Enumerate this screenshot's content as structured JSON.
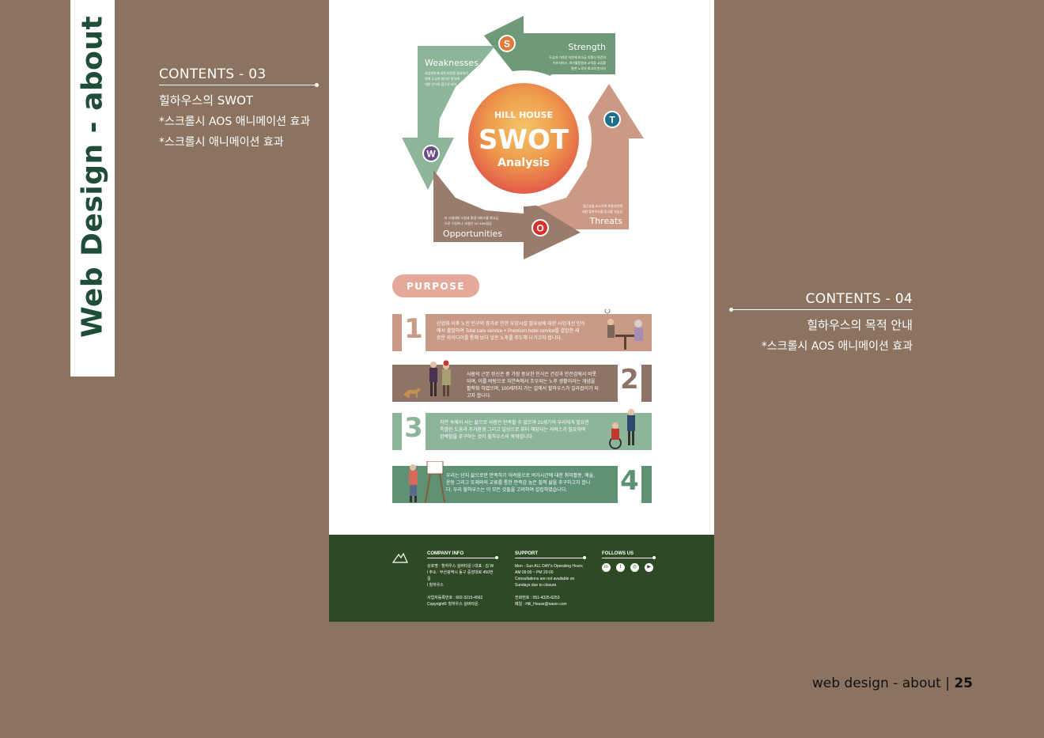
{
  "side_title": "Web Design - about",
  "contents_03": {
    "head": "CONTENTS - 03",
    "lines": [
      "힐하우스의  SWOT",
      "*스크롤시 AOS 애니메이션 효과",
      "*스크롤시 애니메이션 효과"
    ]
  },
  "contents_04": {
    "head": "CONTENTS - 04",
    "lines": [
      "힐하우스의  목적 안내",
      "*스크롤시 AOS 애니메이션 효과"
    ]
  },
  "swot": {
    "brand": "HILL HOUSE",
    "title": "SWOT",
    "subtitle": "Analysis",
    "strength": {
      "label": "Strength",
      "letter": "S",
      "text": [
        "도심과 가까운 자연에 최고급 호텔식 편견과",
        "어프서비스, 여가활동원과  교육을 교류를",
        "통한 노후의 최고의 만사의"
      ]
    },
    "weakness": {
      "label": "Weaknesses",
      "letter": "W",
      "text": [
        "사업분야에 대한 비용을 필요하기",
        "위해 도심과 멀어진 위치에",
        "대한 인식의 접근성 저하"
      ]
    },
    "threats": {
      "label": "Threats",
      "letter": "T",
      "text": [
        "접근성을 요소하여 비용지연해",
        "대한 힐하우스를 광고할 가능성"
      ]
    },
    "opportunities": {
      "label": "Opportunities",
      "letter": "O",
      "text": [
        "타 시설대비 시설과 환경 서비스를 최고급",
        "으로 구성하나, 비용은 10~15%정급"
      ]
    },
    "colors": {
      "s": "#e07a3c",
      "w": "#6a4c86",
      "t": "#1f6e8c",
      "o": "#d6322b",
      "green": "#5f9274",
      "lightgreen": "#8db59a",
      "brown": "#9a7c6c",
      "salmon": "#d29a84"
    }
  },
  "purpose": {
    "badge": "PURPOSE",
    "items": [
      {
        "num": "1",
        "text": [
          "산업화 이후 노인 인구의 증가로 인한 요양시설 필요성에 대한 사업개선 인식",
          "에서 출발하여 Total care service + Premium hotel service를 결합한 새",
          "로운 아이디어를 통해 보다 낳은 노후를 주도해 나가고자 합니다."
        ]
      },
      {
        "num": "2",
        "text": [
          "사람의 근본 정신은 중 가장 중요한 인식은 건강과 안전감에서 비롯",
          "되며, 이를 바탕으로  자연속에서 조우되는 노후 생활이라는 개념을",
          "활착화 하였으며, 100세까지 가는 길에서 힐하우스가 길라잡이가 되",
          "고자 합니다."
        ]
      },
      {
        "num": "3",
        "text": [
          "자연 속에서 사는 삶으로 사람은 만족할 수 없으며 21세기의 우리에게 필요한",
          "특별한 도움과 주거환경 그리고 일상으로 부터 해당되는 서비스가 필요하며",
          "완벽함을 추구하는 것이 힐하우스의 목적입니다."
        ]
      },
      {
        "num": "4",
        "text": [
          "우리는 단지 삶으로만 만족하기 어려움으로 여가시간에 대한 취미활동, 예술,",
          "운동 그리고 또래와의 교류를 통한 만족감 높은 질적 삶을 추구하고자 합니",
          "다. 우리 힐하우스는 이 모든 것들을 고려하여 설립하였습니다."
        ]
      }
    ]
  },
  "footer": {
    "company": {
      "head": "COMPANY INFO",
      "lines": [
        "상호명 : 힐하우스 실버타운    l   대표 : 김 W",
        "l  주소 : 부산광역시 동구 중앙대로 450번길",
        "l 힐하우스",
        "",
        "사업자등록번호 : 602-3215-4562",
        "Copyright© 힐하우스 실버타운."
      ]
    },
    "support": {
      "head": "SUPPORT",
      "lines": [
        "Mon - Sun ALL DAY's  Operating Hours",
        "AM 09:00 ~ PM 20:00",
        "Consultations are not available on",
        "Sundays due to closure.",
        "",
        "전화번호 : 051-4325-6253",
        "메일 : Hill_House@naver.com"
      ]
    },
    "follow": {
      "head": "FOLLOWS US",
      "icons": [
        "in",
        "t",
        "◎",
        "▶"
      ]
    }
  },
  "page_footer": {
    "text": "web design - about |",
    "number": "25"
  }
}
